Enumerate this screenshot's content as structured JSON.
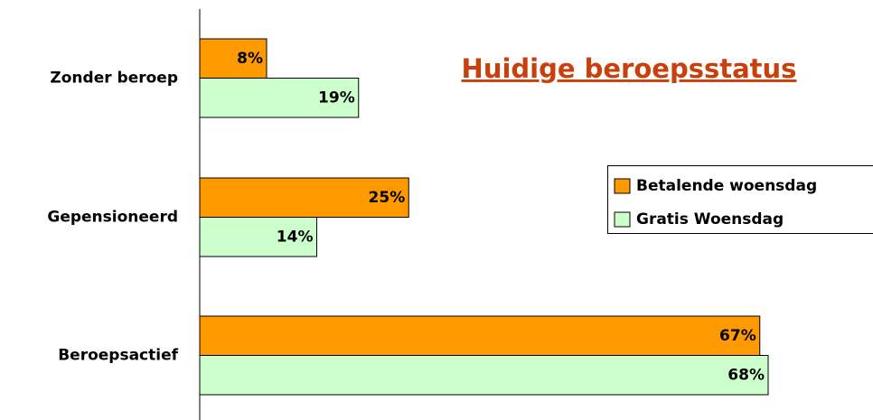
{
  "chart_data": {
    "type": "barh",
    "title": "Huidige beroepsstatus",
    "categories": [
      "Zonder beroep",
      "Gepensioneerd",
      "Beroepsactief"
    ],
    "series": [
      {
        "name": "Betalende woensdag",
        "color": "#ff9900",
        "values": [
          8,
          25,
          67
        ],
        "value_labels": [
          "8%",
          "25%",
          "67%"
        ]
      },
      {
        "name": "Gratis Woensdag",
        "color": "#ccffcc",
        "values": [
          19,
          14,
          68
        ],
        "value_labels": [
          "19%",
          "14%",
          "68%"
        ]
      }
    ],
    "title_color": "#c8400c"
  }
}
